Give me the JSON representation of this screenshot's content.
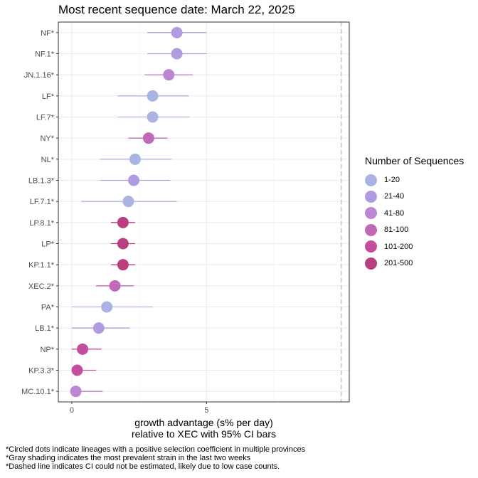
{
  "title": "Most recent sequence date: March 22, 2025",
  "x_axis_title_line1": "growth advantage (s% per day)",
  "x_axis_title_line2": "relative to  XEC  with 95% CI bars",
  "legend": {
    "title": "Number of Sequences",
    "items": [
      {
        "label": "1-20",
        "color": "#aab4e2"
      },
      {
        "label": "21-40",
        "color": "#b09be0"
      },
      {
        "label": "41-80",
        "color": "#bb86d4"
      },
      {
        "label": "81-100",
        "color": "#c069b8"
      },
      {
        "label": "101-200",
        "color": "#c24f9c"
      },
      {
        "label": "201-500",
        "color": "#ba3f80"
      }
    ]
  },
  "footnotes": [
    "*Circled dots indicate lineages with a positive selection coefficient in multiple provinces",
    "*Gray shading indicates the most prevalent strain in the last two weeks",
    "*Dashed line indicates CI could not be estimated, likely due to low case counts."
  ],
  "chart_data": {
    "type": "scatter",
    "title": "Most recent sequence date: March 22, 2025",
    "xlabel": "growth advantage (s% per day)\nrelative to  XEC  with 95% CI bars",
    "xlim": [
      -0.5,
      10.3
    ],
    "xticks": [
      0,
      5
    ],
    "xtick_labels": [
      "0",
      "5"
    ],
    "dashed_reference_x": 10.0,
    "grid": true,
    "legend_position": "right",
    "points": [
      {
        "lineage": "NF*",
        "value": 3.9,
        "ci_low": 2.8,
        "ci_high": 5.0,
        "bin": "21-40"
      },
      {
        "lineage": "NF.1*",
        "value": 3.9,
        "ci_low": 2.8,
        "ci_high": 5.0,
        "bin": "21-40"
      },
      {
        "lineage": "JN.1.16*",
        "value": 3.6,
        "ci_low": 2.7,
        "ci_high": 4.5,
        "bin": "41-80"
      },
      {
        "lineage": "LF*",
        "value": 3.0,
        "ci_low": 1.7,
        "ci_high": 4.35,
        "bin": "1-20"
      },
      {
        "lineage": "LF.7*",
        "value": 3.0,
        "ci_low": 1.7,
        "ci_high": 4.35,
        "bin": "1-20"
      },
      {
        "lineage": "NY*",
        "value": 2.85,
        "ci_low": 2.1,
        "ci_high": 3.55,
        "bin": "81-100"
      },
      {
        "lineage": "NL*",
        "value": 2.35,
        "ci_low": 1.05,
        "ci_high": 3.7,
        "bin": "1-20"
      },
      {
        "lineage": "LB.1.3*",
        "value": 2.3,
        "ci_low": 1.05,
        "ci_high": 3.65,
        "bin": "21-40"
      },
      {
        "lineage": "LF.7.1*",
        "value": 2.1,
        "ci_low": 0.35,
        "ci_high": 3.9,
        "bin": "1-20"
      },
      {
        "lineage": "LP.8.1*",
        "value": 1.9,
        "ci_low": 1.45,
        "ci_high": 2.35,
        "bin": "201-500"
      },
      {
        "lineage": "LP*",
        "value": 1.9,
        "ci_low": 1.45,
        "ci_high": 2.35,
        "bin": "201-500"
      },
      {
        "lineage": "KP.1.1*",
        "value": 1.9,
        "ci_low": 1.45,
        "ci_high": 2.35,
        "bin": "201-500"
      },
      {
        "lineage": "XEC.2*",
        "value": 1.6,
        "ci_low": 0.9,
        "ci_high": 2.3,
        "bin": "81-100"
      },
      {
        "lineage": "PA*",
        "value": 1.3,
        "ci_low": 0.0,
        "ci_high": 3.0,
        "bin": "1-20"
      },
      {
        "lineage": "LB.1*",
        "value": 1.0,
        "ci_low": 0.0,
        "ci_high": 2.15,
        "bin": "21-40"
      },
      {
        "lineage": "NP*",
        "value": 0.4,
        "ci_low": 0.0,
        "ci_high": 1.1,
        "bin": "101-200"
      },
      {
        "lineage": "KP.3.3*",
        "value": 0.2,
        "ci_low": 0.0,
        "ci_high": 0.9,
        "bin": "101-200"
      },
      {
        "lineage": "MC.10.1*",
        "value": 0.15,
        "ci_low": 0.0,
        "ci_high": 1.15,
        "bin": "41-80"
      }
    ]
  }
}
